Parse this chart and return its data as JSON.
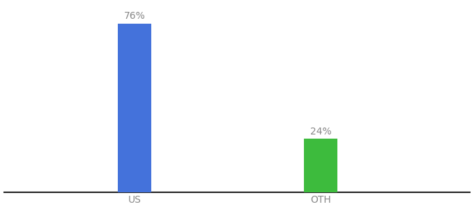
{
  "categories": [
    "US",
    "OTH"
  ],
  "values": [
    76,
    24
  ],
  "bar_colors": [
    "#4472db",
    "#3dbb3d"
  ],
  "label_format": "{}%",
  "background_color": "#ffffff",
  "ylim": [
    0,
    85
  ],
  "bar_width": 0.18,
  "x_positions": [
    1,
    2
  ],
  "xlim": [
    0.3,
    2.8
  ],
  "label_fontsize": 10,
  "tick_fontsize": 10,
  "tick_color": "#888888",
  "label_color": "#888888",
  "spine_color": "#222222"
}
